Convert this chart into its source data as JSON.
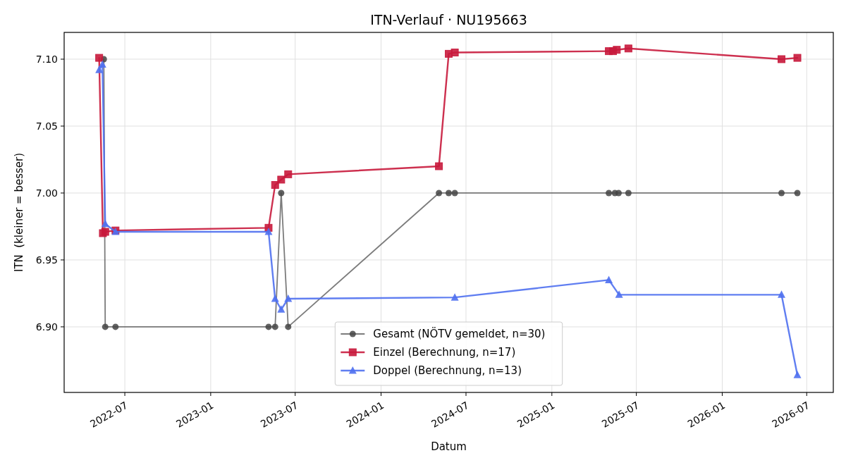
{
  "chart_data": {
    "type": "line",
    "title": "ITN-Verlauf · NU195663",
    "xlabel": "Datum",
    "ylabel": "ITN  (kleiner = besser)",
    "xlim": [
      "2022-02-21",
      "2026-08-27"
    ],
    "xticks": [
      "2022-07",
      "2023-01",
      "2023-07",
      "2024-01",
      "2024-07",
      "2025-01",
      "2025-07",
      "2026-01",
      "2026-07"
    ],
    "ylim": [
      6.851,
      7.12
    ],
    "yticks": [
      {
        "value": 6.9,
        "label": "6.90"
      },
      {
        "value": 6.95,
        "label": "6.95"
      },
      {
        "value": 7.0,
        "label": "7.00"
      },
      {
        "value": 7.05,
        "label": "7.05"
      },
      {
        "value": 7.1,
        "label": "7.10"
      }
    ],
    "grid": true,
    "legend": "bottom",
    "line_style": "solid",
    "series": [
      {
        "name": "Gesamt (NÖTV gemeldet, n=30)",
        "color": "#444444",
        "marker": "circle",
        "x": [
          "2022-05-17",
          "2022-05-20",
          "2022-06-11",
          "2023-05-05",
          "2023-05-19",
          "2023-06-01",
          "2023-06-16",
          "2024-05-04",
          "2024-05-25",
          "2024-06-07",
          "2025-05-03",
          "2025-05-16",
          "2025-05-24",
          "2025-06-14",
          "2026-05-08",
          "2026-06-11"
        ],
        "values": [
          7.1,
          6.9,
          6.9,
          6.9,
          6.9,
          7.0,
          6.9,
          7.0,
          7.0,
          7.0,
          7.0,
          7.0,
          7.0,
          7.0,
          7.0,
          7.0
        ]
      },
      {
        "name": "Einzel (Berechnung, n=17)",
        "color": "#c8193c",
        "marker": "square",
        "x": [
          "2022-05-07",
          "2022-05-15",
          "2022-05-20",
          "2022-06-11",
          "2023-05-05",
          "2023-05-19",
          "2023-06-01",
          "2023-06-16",
          "2024-05-04",
          "2024-05-25",
          "2024-06-07",
          "2025-05-03",
          "2025-05-12",
          "2025-05-20",
          "2025-06-14",
          "2026-05-08",
          "2026-06-11"
        ],
        "values": [
          7.101,
          6.97,
          6.971,
          6.972,
          6.974,
          7.006,
          7.01,
          7.014,
          7.02,
          7.104,
          7.105,
          7.106,
          7.106,
          7.107,
          7.108,
          7.1,
          7.101
        ]
      },
      {
        "name": "Doppel (Berechnung, n=13)",
        "color": "#4f70f0",
        "marker": "triangle",
        "x": [
          "2022-05-07",
          "2022-05-14",
          "2022-05-20",
          "2022-06-11",
          "2023-05-05",
          "2023-05-19",
          "2023-06-01",
          "2023-06-16",
          "2024-06-07",
          "2025-05-03",
          "2025-05-25",
          "2026-05-08",
          "2026-06-11"
        ],
        "values": [
          7.092,
          7.096,
          6.977,
          6.971,
          6.971,
          6.921,
          6.913,
          6.921,
          6.922,
          6.935,
          6.924,
          6.924,
          6.864
        ]
      }
    ]
  }
}
